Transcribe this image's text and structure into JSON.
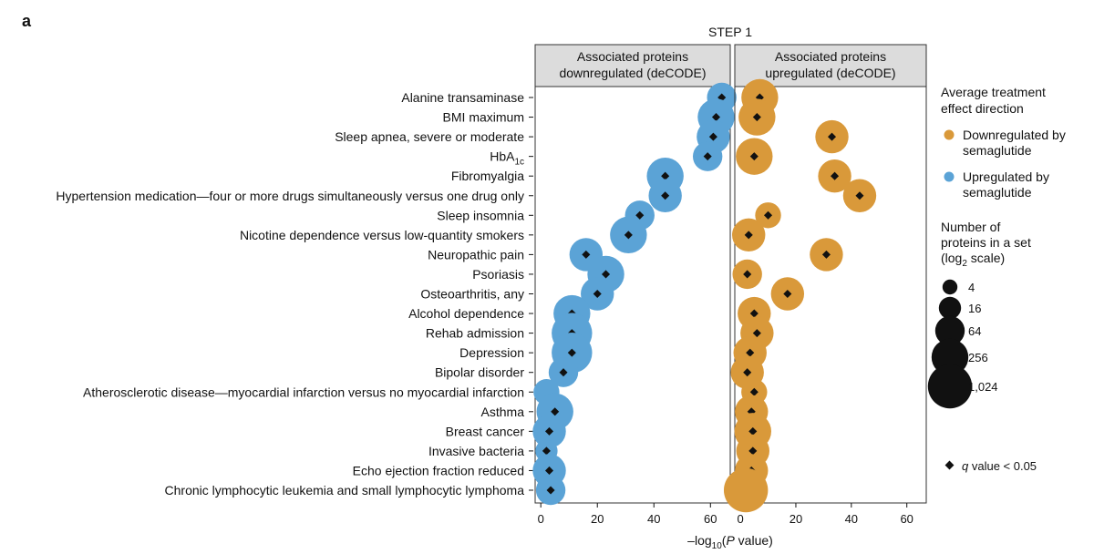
{
  "panel_letter": "a",
  "chart_data": {
    "type": "scatter",
    "title": "STEP 1",
    "xlabel_prefix": "–log",
    "xlabel_sub": "10",
    "xlabel_open": "(",
    "xlabel_italic": "P",
    "xlabel_suffix": " value)",
    "xlim": [
      -2,
      67
    ],
    "xticks": [
      0,
      20,
      40,
      60
    ],
    "categories": [
      "Alanine transaminase",
      "BMI maximum",
      "Sleep apnea, severe or moderate",
      "HbA1c",
      "Fibromyalgia",
      "Hypertension medication—four or more drugs simultaneously versus one drug only",
      "Sleep insomnia",
      "Nicotine dependence versus low-quantity smokers",
      "Neuropathic pain",
      "Psoriasis",
      "Osteoarthritis, any",
      "Alcohol dependence",
      "Rehab admission",
      "Depression",
      "Bipolar disorder",
      "Atherosclerotic disease—myocardial infarction versus no myocardial infarction",
      "Asthma",
      "Breast cancer",
      "Invasive bacteria",
      "Echo ejection fraction reduced",
      "Chronic lymphocytic leukemia and small lymphocytic lymphoma"
    ],
    "hba1c_label": {
      "base": "HbA",
      "sub": "1c"
    },
    "panels": [
      {
        "strip_line1": "Associated proteins",
        "strip_line2": "downregulated (deCODE)",
        "color": "#5ba3d6",
        "series_name": "Upregulated by semaglutide",
        "x": [
          64,
          62,
          61,
          59,
          44,
          44,
          35,
          31,
          16,
          23,
          20,
          11,
          11,
          11,
          8,
          2,
          5,
          3,
          2,
          3,
          3.5
        ],
        "size": [
          64,
          256,
          128,
          64,
          256,
          128,
          64,
          256,
          128,
          256,
          128,
          256,
          512,
          512,
          64,
          32,
          256,
          128,
          16,
          128,
          64
        ],
        "sig": [
          true,
          true,
          true,
          true,
          true,
          true,
          true,
          true,
          true,
          true,
          true,
          true,
          true,
          true,
          true,
          false,
          true,
          true,
          true,
          true,
          true
        ]
      },
      {
        "strip_line1": "Associated proteins",
        "strip_line2": "upregulated (deCODE)",
        "color": "#d9993a",
        "series_name": "Downregulated by semaglutide",
        "x": [
          7,
          6,
          33,
          5,
          34,
          43,
          10,
          3,
          31,
          2.5,
          17,
          5,
          6,
          3.5,
          2.5,
          5,
          4,
          4.5,
          4.5,
          4,
          2
        ],
        "size": [
          256,
          256,
          128,
          256,
          128,
          128,
          32,
          128,
          128,
          64,
          128,
          128,
          128,
          128,
          128,
          32,
          128,
          256,
          128,
          128,
          1024
        ],
        "sig": [
          true,
          true,
          true,
          true,
          true,
          true,
          true,
          true,
          true,
          true,
          true,
          true,
          true,
          true,
          true,
          true,
          true,
          true,
          true,
          true,
          false
        ]
      }
    ]
  },
  "legend": {
    "direction_title_line1": "Average treatment",
    "direction_title_line2": "effect direction",
    "direction_items": [
      {
        "line1": "Downregulated by",
        "line2": "semaglutide",
        "color": "#d9993a"
      },
      {
        "line1": "Upregulated by",
        "line2": "semaglutide",
        "color": "#5ba3d6"
      }
    ],
    "size_title_line1": "Number of",
    "size_title_line2": "proteins in a set",
    "size_title_line3_pre": "(log",
    "size_title_line3_sub": "2",
    "size_title_line3_post": " scale)",
    "size_items": [
      {
        "label": "4",
        "value": 4
      },
      {
        "label": "16",
        "value": 16
      },
      {
        "label": "64",
        "value": 64
      },
      {
        "label": "256",
        "value": 256
      },
      {
        "label": "1,024",
        "value": 1024
      }
    ],
    "sig_label_italic": "q",
    "sig_label_rest": " value < 0.05"
  }
}
